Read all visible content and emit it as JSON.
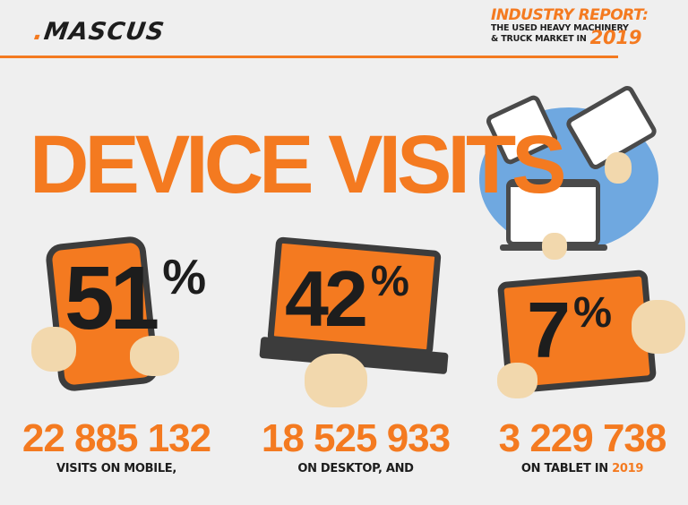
{
  "brand": {
    "logo_dot": ".",
    "logo_text": "MASCUS"
  },
  "header": {
    "report": "INDUSTRY REPORT:",
    "line1": "THE USED HEAVY MACHINERY",
    "line2": "& TRUCK MARKET IN",
    "year": "2019"
  },
  "title": "DEVICE VISITS",
  "colors": {
    "accent": "#f47a20",
    "text": "#1d1d1d",
    "background": "#efefef",
    "skin": "#f2d8ad",
    "blob": "#6fa8e0"
  },
  "stats": [
    {
      "device": "mobile",
      "percent": "51",
      "percent_sign": "%",
      "count": "22 885 132",
      "label": "VISITS ON MOBILE,",
      "label_suffix": ""
    },
    {
      "device": "desktop",
      "percent": "42",
      "percent_sign": "%",
      "count": "18 525 933",
      "label": "ON DESKTOP, AND",
      "label_suffix": ""
    },
    {
      "device": "tablet",
      "percent": "7",
      "percent_sign": "%",
      "count": "3 229 738",
      "label": "ON TABLET IN ",
      "label_suffix": "2019"
    }
  ]
}
